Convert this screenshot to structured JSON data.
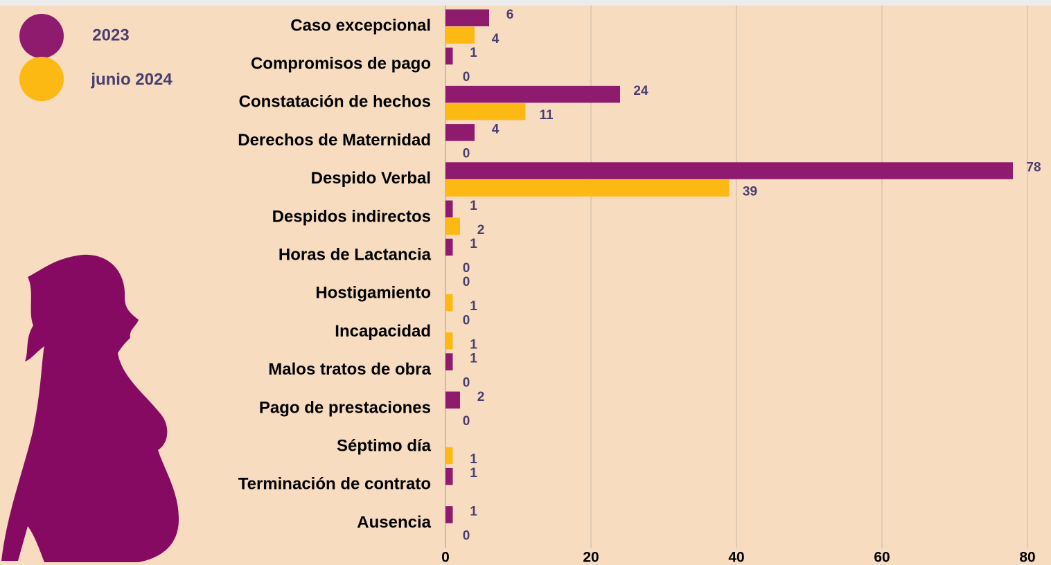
{
  "chart_data": {
    "type": "hbar",
    "categories": [
      "Caso excepcional",
      "Compromisos de pago",
      "Constatación de hechos",
      "Derechos de Maternidad",
      "Despido Verbal",
      "Despidos indirectos",
      "Horas de Lactancia",
      "Hostigamiento",
      "Incapacidad",
      "Malos tratos de obra",
      "Pago de prestaciones",
      "Séptimo día",
      "Terminación de contrato",
      "Ausencia"
    ],
    "series": [
      {
        "name": "2023",
        "color": "#8e1b6e",
        "values": [
          6,
          1,
          24,
          4,
          78,
          1,
          1,
          0,
          0,
          1,
          2,
          null,
          1,
          1
        ]
      },
      {
        "name": "junio 2024",
        "color": "#fdb913",
        "values": [
          4,
          0,
          11,
          0,
          39,
          2,
          0,
          1,
          1,
          0,
          0,
          1,
          null,
          0
        ]
      }
    ],
    "xlim": [
      0,
      80
    ],
    "xticks": [
      0,
      20,
      40,
      60,
      80
    ],
    "grid": true
  }
}
